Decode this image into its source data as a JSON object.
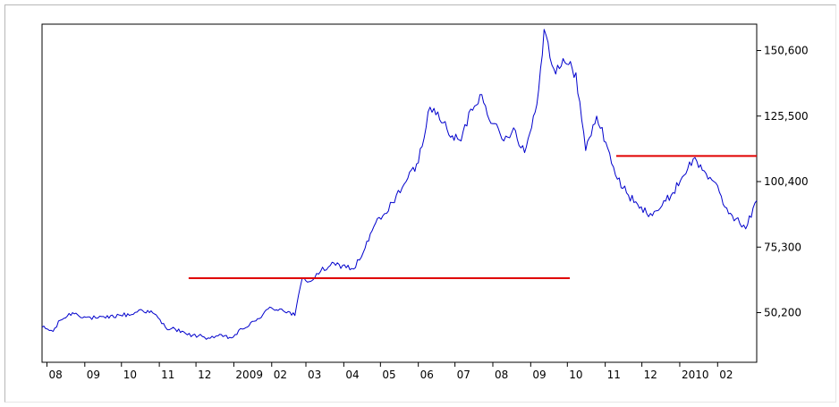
{
  "chart_data": {
    "type": "line",
    "x_tick_labels": [
      "08",
      "09",
      "10",
      "11",
      "12",
      "2009",
      "02",
      "03",
      "04",
      "05",
      "06",
      "07",
      "08",
      "09",
      "10",
      "11",
      "12",
      "2010",
      "02"
    ],
    "y_tick_labels": [
      "150,600",
      "125,500",
      "100,400",
      "75,300",
      "50,200"
    ],
    "y_ticks": [
      150600,
      125500,
      100400,
      75300,
      50200
    ],
    "ylim": [
      36000,
      162000
    ],
    "x_start": "2008-07-28",
    "x_end": "2010-03-05",
    "grid": false,
    "legend": "none",
    "series": [
      {
        "color": "#0000cc",
        "x": [
          "2008-07-28",
          "2008-08-06",
          "2008-08-12",
          "2008-08-22",
          "2008-09-02",
          "2008-09-10",
          "2008-09-18",
          "2008-09-29",
          "2008-10-09",
          "2008-10-17",
          "2008-10-28",
          "2008-11-06",
          "2008-11-14",
          "2008-11-24",
          "2008-12-03",
          "2008-12-11",
          "2008-12-19",
          "2008-12-30",
          "2009-01-08",
          "2009-01-19",
          "2009-01-29",
          "2009-02-09",
          "2009-02-20",
          "2009-02-26",
          "2009-03-05",
          "2009-03-13",
          "2009-03-21",
          "2009-03-31",
          "2009-04-09",
          "2009-04-17",
          "2009-04-27",
          "2009-05-06",
          "2009-05-14",
          "2009-05-22",
          "2009-06-01",
          "2009-06-09",
          "2009-06-17",
          "2009-06-26",
          "2009-07-06",
          "2009-07-14",
          "2009-07-23",
          "2009-08-01",
          "2009-08-10",
          "2009-08-18",
          "2009-08-27",
          "2009-09-06",
          "2009-09-12",
          "2009-09-20",
          "2009-09-29",
          "2009-10-08",
          "2009-10-16",
          "2009-10-25",
          "2009-11-03",
          "2009-11-11",
          "2009-11-20",
          "2009-11-29",
          "2009-12-08",
          "2009-12-16",
          "2009-12-25",
          "2010-01-03",
          "2010-01-12",
          "2010-01-21",
          "2010-01-29",
          "2010-02-07",
          "2010-02-16",
          "2010-02-24",
          "2010-03-05"
        ],
        "values": [
          44600,
          43000,
          47300,
          50200,
          48400,
          48100,
          48100,
          49300,
          49400,
          51400,
          49700,
          44600,
          43900,
          41700,
          41300,
          40500,
          41300,
          40500,
          43900,
          47000,
          51600,
          51600,
          49100,
          63400,
          62200,
          66000,
          68300,
          68300,
          66900,
          73300,
          84500,
          88200,
          95200,
          100400,
          107600,
          127100,
          127100,
          118300,
          116000,
          128200,
          133700,
          122600,
          116000,
          121000,
          111500,
          129900,
          158700,
          143500,
          146000,
          142100,
          112300,
          125500,
          113200,
          101300,
          95200,
          90200,
          88200,
          90200,
          95200,
          102100,
          109100,
          104500,
          100400,
          90600,
          86100,
          82300,
          93100
        ]
      }
    ],
    "reference_lines": [
      {
        "color": "#e00000",
        "y": 63400,
        "x_from": "2008-11-25",
        "x_to": "2009-10-03"
      },
      {
        "color": "#e00000",
        "y": 110200,
        "x_from": "2009-11-10",
        "x_to": "2010-03-05"
      }
    ]
  }
}
